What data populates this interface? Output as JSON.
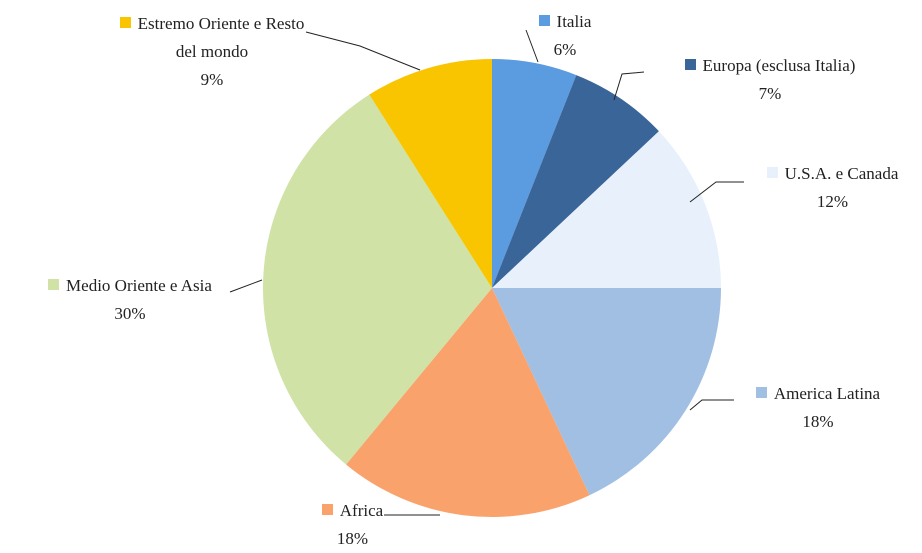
{
  "chart_data": {
    "type": "pie",
    "categories": [
      "Italia",
      "Europa (esclusa Italia)",
      "U.S.A. e Canada",
      "America Latina",
      "Africa",
      "Medio Oriente e Asia",
      "Estremo Oriente e Resto del mondo"
    ],
    "values": [
      6,
      7,
      12,
      18,
      18,
      30,
      9
    ],
    "value_labels": [
      "6%",
      "7%",
      "12%",
      "18%",
      "18%",
      "30%",
      "9%"
    ],
    "colors": [
      "#5b9be0",
      "#3a6598",
      "#e8f1fb",
      "#a0bfe3",
      "#f9a26c",
      "#d0e2a6",
      "#f8c500"
    ]
  }
}
